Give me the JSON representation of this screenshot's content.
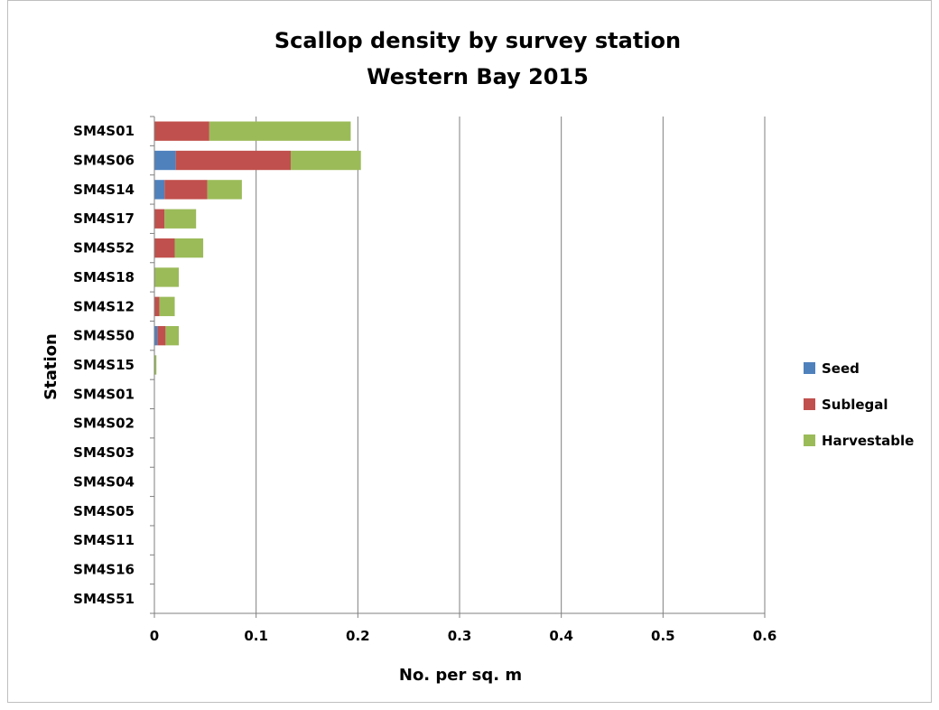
{
  "chart_data": {
    "type": "bar",
    "orientation": "horizontal",
    "stacked": true,
    "title": "Scallop density by survey station",
    "subtitle": "Western Bay 2015",
    "xlabel": "No. per sq. m",
    "ylabel": "Station",
    "xlim": [
      0,
      0.6
    ],
    "x_ticks": [
      "0",
      "0.1",
      "0.2",
      "0.3",
      "0.4",
      "0.5",
      "0.6"
    ],
    "grid": "vertical major gridlines",
    "legend_position": "right",
    "categories": [
      "SM4S01",
      "SM4S06",
      "SM4S14",
      "SM4S17",
      "SM4S52",
      "SM4S18",
      "SM4S12",
      "SM4S50",
      "SM4S15",
      "SM4S01",
      "SM4S02",
      "SM4S03",
      "SM4S04",
      "SM4S05",
      "SM4S11",
      "SM4S16",
      "SM4S51"
    ],
    "series": [
      {
        "name": "Seed",
        "color": "#4f81bd",
        "values": [
          0,
          0.021,
          0.01,
          0,
          0,
          0,
          0,
          0.003,
          0,
          0,
          0,
          0,
          0,
          0,
          0,
          0,
          0
        ]
      },
      {
        "name": "Sublegal",
        "color": "#c0504d",
        "values": [
          0.054,
          0.113,
          0.042,
          0.01,
          0.02,
          0,
          0.005,
          0.008,
          0,
          0,
          0,
          0,
          0,
          0,
          0,
          0,
          0
        ]
      },
      {
        "name": "Harvestable",
        "color": "#9bbb59",
        "values": [
          0.139,
          0.069,
          0.034,
          0.031,
          0.028,
          0.024,
          0.015,
          0.013,
          0.002,
          0,
          0,
          0,
          0,
          0,
          0,
          0,
          0
        ]
      }
    ]
  }
}
